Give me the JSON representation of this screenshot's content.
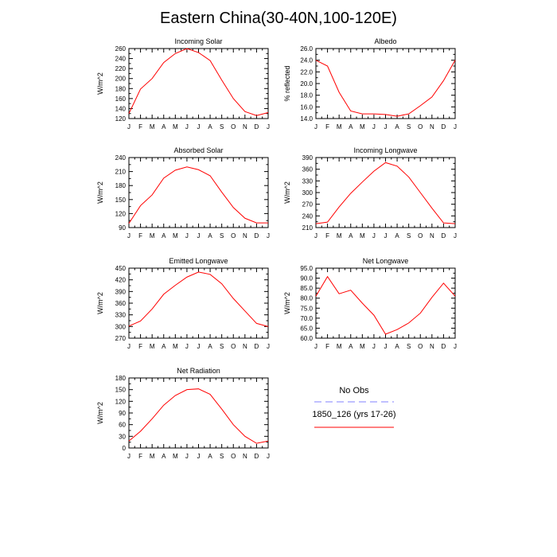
{
  "title": "Eastern China(30-40N,100-120E)",
  "legend": {
    "entries": [
      {
        "label": "No Obs",
        "color": "#8080ff",
        "dash": "dashed"
      },
      {
        "label": "1850_126 (yrs 17-26)",
        "color": "#ff0000",
        "dash": "solid"
      }
    ]
  },
  "chart_data": [
    {
      "type": "line",
      "title": "Incoming Solar",
      "ylabel": "W/m^2",
      "xlabel": "",
      "categories": [
        "J",
        "F",
        "M",
        "A",
        "M",
        "J",
        "J",
        "A",
        "S",
        "O",
        "N",
        "D",
        "J"
      ],
      "ylim": [
        120,
        260
      ],
      "yticks": [
        120,
        140,
        160,
        180,
        200,
        220,
        240,
        260
      ],
      "yticklabels": [
        "120",
        "140",
        "160",
        "180",
        "200",
        "220",
        "240",
        "260"
      ],
      "series": [
        {
          "color": "#ff0000",
          "values": [
            130,
            179,
            200,
            232,
            250,
            260,
            252,
            236,
            197,
            160,
            134,
            126,
            132
          ]
        }
      ]
    },
    {
      "type": "line",
      "title": "Albedo",
      "ylabel": "% reflected",
      "xlabel": "",
      "categories": [
        "J",
        "F",
        "M",
        "A",
        "M",
        "J",
        "J",
        "A",
        "S",
        "O",
        "N",
        "D",
        "J"
      ],
      "ylim": [
        14,
        26
      ],
      "yticks": [
        14,
        16,
        18,
        20,
        22,
        24,
        26
      ],
      "yticklabels": [
        "14.0",
        "16.0",
        "18.0",
        "20.0",
        "22.0",
        "24.0",
        "26.0"
      ],
      "series": [
        {
          "color": "#ff0000",
          "values": [
            24.0,
            23.0,
            18.5,
            15.3,
            14.8,
            14.8,
            14.7,
            14.4,
            14.8,
            16.2,
            17.7,
            20.5,
            24.0
          ]
        }
      ]
    },
    {
      "type": "line",
      "title": "Absorbed Solar",
      "ylabel": "W/m^2",
      "xlabel": "",
      "categories": [
        "J",
        "F",
        "M",
        "A",
        "M",
        "J",
        "J",
        "A",
        "S",
        "O",
        "N",
        "D",
        "J"
      ],
      "ylim": [
        90,
        240
      ],
      "yticks": [
        90,
        120,
        150,
        180,
        210,
        240
      ],
      "yticklabels": [
        "90",
        "120",
        "150",
        "180",
        "210",
        "240"
      ],
      "series": [
        {
          "color": "#ff0000",
          "values": [
            99,
            137,
            160,
            196,
            213,
            220,
            214,
            201,
            166,
            133,
            110,
            100,
            100
          ]
        }
      ]
    },
    {
      "type": "line",
      "title": "Incoming Longwave",
      "ylabel": "W/m^2",
      "xlabel": "",
      "categories": [
        "J",
        "F",
        "M",
        "A",
        "M",
        "J",
        "J",
        "A",
        "S",
        "O",
        "N",
        "D",
        "J"
      ],
      "ylim": [
        210,
        390
      ],
      "yticks": [
        210,
        240,
        270,
        300,
        330,
        360,
        390
      ],
      "yticklabels": [
        "210",
        "240",
        "270",
        "300",
        "330",
        "360",
        "390"
      ],
      "series": [
        {
          "color": "#ff0000",
          "values": [
            220,
            224,
            263,
            298,
            327,
            355,
            377,
            368,
            340,
            300,
            260,
            222,
            220
          ]
        }
      ]
    },
    {
      "type": "line",
      "title": "Emitted Longwave",
      "ylabel": "W/m^2",
      "xlabel": "",
      "categories": [
        "J",
        "F",
        "M",
        "A",
        "M",
        "J",
        "J",
        "A",
        "S",
        "O",
        "N",
        "D",
        "J"
      ],
      "ylim": [
        270,
        450
      ],
      "yticks": [
        270,
        300,
        330,
        360,
        390,
        420,
        450
      ],
      "yticklabels": [
        "270",
        "300",
        "330",
        "360",
        "390",
        "420",
        "450"
      ],
      "series": [
        {
          "color": "#ff0000",
          "values": [
            301,
            314,
            345,
            383,
            406,
            427,
            440,
            434,
            410,
            372,
            340,
            308,
            300
          ]
        }
      ]
    },
    {
      "type": "line",
      "title": "Net Longwave",
      "ylabel": "W/m^2",
      "xlabel": "",
      "categories": [
        "J",
        "F",
        "M",
        "A",
        "M",
        "J",
        "J",
        "A",
        "S",
        "O",
        "N",
        "D",
        "J"
      ],
      "ylim": [
        60,
        95
      ],
      "yticks": [
        60,
        65,
        70,
        75,
        80,
        85,
        90,
        95
      ],
      "yticklabels": [
        "60.0",
        "65.0",
        "70.0",
        "75.0",
        "80.0",
        "85.0",
        "90.0",
        "95.0"
      ],
      "series": [
        {
          "color": "#ff0000",
          "values": [
            81.0,
            90.8,
            82.2,
            84.0,
            77.5,
            71.5,
            62.0,
            64.3,
            67.6,
            72.5,
            80.4,
            87.5,
            81.0
          ]
        }
      ]
    },
    {
      "type": "line",
      "title": "Net Radiation",
      "ylabel": "W/m^2",
      "xlabel": "",
      "categories": [
        "J",
        "F",
        "M",
        "A",
        "M",
        "J",
        "J",
        "A",
        "S",
        "O",
        "N",
        "D",
        "J"
      ],
      "ylim": [
        0,
        180
      ],
      "yticks": [
        0,
        30,
        60,
        90,
        120,
        150,
        180
      ],
      "yticklabels": [
        "0",
        "30",
        "60",
        "90",
        "120",
        "150",
        "180"
      ],
      "series": [
        {
          "color": "#ff0000",
          "values": [
            18,
            43,
            75,
            110,
            135,
            150,
            152,
            138,
            100,
            60,
            30,
            12,
            18
          ]
        }
      ]
    }
  ]
}
